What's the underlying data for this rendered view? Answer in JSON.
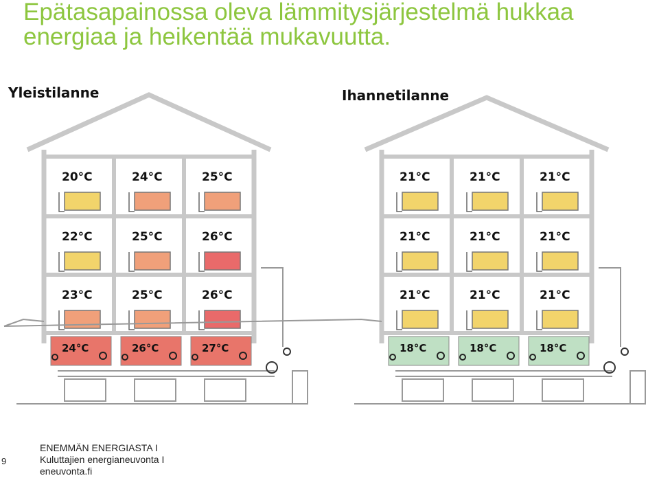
{
  "title": {
    "line1": "Epätasapainossa oleva lämmitysjärjestelmä hukkaa",
    "line2": "energiaa ja heikentää mukavuutta."
  },
  "colors": {
    "title": "#8dc63f",
    "radiator_normal": "#f2d46b",
    "radiator_warm": "#f0a07a",
    "radiator_hot": "#e96a6a",
    "basement_hot": "#e8756a",
    "basement_cool": "#bfe0c4",
    "wall": "#c8c8c8"
  },
  "houses": [
    {
      "label": "Yleistilanne",
      "floors": [
        {
          "temps": [
            "20°C",
            "24°C",
            "25°C"
          ],
          "radiators": [
            "normal",
            "warm",
            "warm"
          ]
        },
        {
          "temps": [
            "22°C",
            "25°C",
            "26°C"
          ],
          "radiators": [
            "normal",
            "warm",
            "hot"
          ]
        },
        {
          "temps": [
            "23°C",
            "25°C",
            "26°C"
          ],
          "radiators": [
            "warm",
            "warm",
            "hot"
          ]
        }
      ],
      "basement": {
        "temps": [
          "24°C",
          "26°C",
          "27°C"
        ],
        "state": "hot"
      }
    },
    {
      "label": "Ihannetilanne",
      "floors": [
        {
          "temps": [
            "21°C",
            "21°C",
            "21°C"
          ],
          "radiators": [
            "normal",
            "normal",
            "normal"
          ]
        },
        {
          "temps": [
            "21°C",
            "21°C",
            "21°C"
          ],
          "radiators": [
            "normal",
            "normal",
            "normal"
          ]
        },
        {
          "temps": [
            "21°C",
            "21°C",
            "21°C"
          ],
          "radiators": [
            "normal",
            "normal",
            "normal"
          ]
        }
      ],
      "basement": {
        "temps": [
          "18°C",
          "18°C",
          "18°C"
        ],
        "state": "cool"
      }
    }
  ],
  "footer": {
    "page_number": "9",
    "line1": "ENEMMÄN ENERGIASTA   I",
    "line2": "Kuluttajien energianeuvonta   I",
    "line3": "eneuvonta.fi"
  }
}
